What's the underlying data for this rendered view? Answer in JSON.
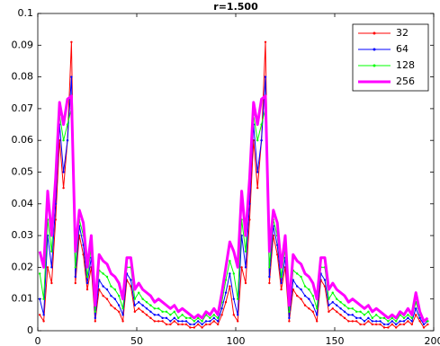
{
  "chart_data": {
    "type": "line",
    "title": "r=1.500",
    "x": [
      1,
      3,
      5,
      7,
      9,
      11,
      13,
      15,
      17,
      19,
      21,
      23,
      25,
      27,
      29,
      31,
      33,
      35,
      37,
      39,
      41,
      43,
      45,
      47,
      49,
      51,
      53,
      55,
      57,
      59,
      61,
      63,
      65,
      67,
      69,
      71,
      73,
      75,
      77,
      79,
      81,
      83,
      85,
      87,
      89,
      91,
      93,
      95,
      97,
      99,
      101,
      103,
      105,
      107,
      109,
      111,
      113,
      115,
      117,
      119,
      121,
      123,
      125,
      127,
      129,
      131,
      133,
      135,
      137,
      139,
      141,
      143,
      145,
      147,
      149,
      151,
      153,
      155,
      157,
      159,
      161,
      163,
      165,
      167,
      169,
      171,
      173,
      175,
      177,
      179,
      181,
      183,
      185,
      187,
      189,
      191,
      193,
      195,
      197
    ],
    "series": [
      {
        "name": "32",
        "color": "#ff0000",
        "width": 1,
        "values": [
          0.005,
          0.003,
          0.02,
          0.015,
          0.035,
          0.06,
          0.045,
          0.06,
          0.091,
          0.015,
          0.03,
          0.024,
          0.013,
          0.02,
          0.003,
          0.013,
          0.011,
          0.01,
          0.008,
          0.007,
          0.006,
          0.003,
          0.016,
          0.014,
          0.006,
          0.007,
          0.006,
          0.005,
          0.004,
          0.003,
          0.003,
          0.003,
          0.002,
          0.002,
          0.003,
          0.002,
          0.002,
          0.002,
          0.001,
          0.001,
          0.002,
          0.001,
          0.002,
          0.002,
          0.003,
          0.002,
          0.005,
          0.009,
          0.014,
          0.005,
          0.003,
          0.02,
          0.015,
          0.035,
          0.06,
          0.045,
          0.06,
          0.091,
          0.015,
          0.03,
          0.024,
          0.013,
          0.02,
          0.003,
          0.013,
          0.011,
          0.01,
          0.008,
          0.007,
          0.006,
          0.003,
          0.016,
          0.014,
          0.006,
          0.007,
          0.006,
          0.005,
          0.004,
          0.003,
          0.003,
          0.003,
          0.002,
          0.002,
          0.003,
          0.002,
          0.002,
          0.002,
          0.001,
          0.001,
          0.002,
          0.001,
          0.002,
          0.002,
          0.003,
          0.002,
          0.005,
          0.003,
          0.001,
          0.002
        ]
      },
      {
        "name": "64",
        "color": "#0000ff",
        "width": 1,
        "values": [
          0.01,
          0.005,
          0.03,
          0.02,
          0.04,
          0.065,
          0.05,
          0.06,
          0.08,
          0.017,
          0.033,
          0.027,
          0.015,
          0.023,
          0.004,
          0.016,
          0.014,
          0.013,
          0.011,
          0.01,
          0.008,
          0.005,
          0.018,
          0.016,
          0.008,
          0.009,
          0.008,
          0.007,
          0.006,
          0.005,
          0.005,
          0.004,
          0.004,
          0.003,
          0.004,
          0.003,
          0.003,
          0.003,
          0.002,
          0.002,
          0.003,
          0.002,
          0.003,
          0.003,
          0.004,
          0.003,
          0.007,
          0.012,
          0.018,
          0.01,
          0.005,
          0.03,
          0.02,
          0.04,
          0.065,
          0.05,
          0.06,
          0.08,
          0.017,
          0.033,
          0.027,
          0.015,
          0.023,
          0.004,
          0.016,
          0.014,
          0.013,
          0.011,
          0.01,
          0.008,
          0.005,
          0.018,
          0.016,
          0.008,
          0.009,
          0.008,
          0.007,
          0.006,
          0.005,
          0.005,
          0.004,
          0.004,
          0.003,
          0.004,
          0.003,
          0.003,
          0.003,
          0.002,
          0.002,
          0.003,
          0.002,
          0.003,
          0.003,
          0.004,
          0.003,
          0.007,
          0.004,
          0.002,
          0.003
        ]
      },
      {
        "name": "128",
        "color": "#00ff00",
        "width": 1,
        "values": [
          0.018,
          0.01,
          0.035,
          0.025,
          0.047,
          0.068,
          0.06,
          0.065,
          0.07,
          0.02,
          0.035,
          0.03,
          0.017,
          0.026,
          0.006,
          0.019,
          0.018,
          0.017,
          0.014,
          0.013,
          0.011,
          0.007,
          0.02,
          0.02,
          0.01,
          0.012,
          0.01,
          0.009,
          0.008,
          0.007,
          0.007,
          0.006,
          0.006,
          0.005,
          0.006,
          0.004,
          0.005,
          0.004,
          0.004,
          0.003,
          0.004,
          0.003,
          0.005,
          0.004,
          0.005,
          0.004,
          0.009,
          0.016,
          0.022,
          0.018,
          0.01,
          0.035,
          0.025,
          0.047,
          0.068,
          0.06,
          0.065,
          0.07,
          0.02,
          0.035,
          0.03,
          0.017,
          0.026,
          0.006,
          0.019,
          0.018,
          0.017,
          0.014,
          0.013,
          0.011,
          0.007,
          0.02,
          0.02,
          0.01,
          0.012,
          0.01,
          0.009,
          0.008,
          0.007,
          0.007,
          0.006,
          0.006,
          0.005,
          0.006,
          0.004,
          0.005,
          0.004,
          0.004,
          0.003,
          0.004,
          0.003,
          0.005,
          0.004,
          0.005,
          0.004,
          0.009,
          0.005,
          0.003,
          0.003
        ]
      },
      {
        "name": "256",
        "color": "#ff00ff",
        "width": 3,
        "values": [
          0.025,
          0.02,
          0.044,
          0.03,
          0.048,
          0.072,
          0.065,
          0.073,
          0.074,
          0.025,
          0.038,
          0.034,
          0.02,
          0.03,
          0.008,
          0.024,
          0.022,
          0.021,
          0.018,
          0.017,
          0.015,
          0.01,
          0.023,
          0.023,
          0.013,
          0.015,
          0.013,
          0.012,
          0.011,
          0.009,
          0.01,
          0.009,
          0.008,
          0.007,
          0.008,
          0.006,
          0.007,
          0.006,
          0.005,
          0.004,
          0.005,
          0.004,
          0.006,
          0.005,
          0.007,
          0.005,
          0.012,
          0.02,
          0.028,
          0.025,
          0.02,
          0.044,
          0.03,
          0.048,
          0.072,
          0.065,
          0.073,
          0.074,
          0.025,
          0.038,
          0.034,
          0.02,
          0.03,
          0.008,
          0.024,
          0.022,
          0.021,
          0.018,
          0.017,
          0.015,
          0.01,
          0.023,
          0.023,
          0.013,
          0.015,
          0.013,
          0.012,
          0.011,
          0.009,
          0.01,
          0.009,
          0.008,
          0.007,
          0.008,
          0.006,
          0.007,
          0.006,
          0.005,
          0.004,
          0.005,
          0.004,
          0.006,
          0.005,
          0.007,
          0.005,
          0.012,
          0.006,
          0.003,
          0.004
        ]
      }
    ],
    "xlim": [
      0,
      200
    ],
    "xticks": [
      0,
      50,
      100,
      150,
      200
    ],
    "ylim": [
      0,
      0.1
    ],
    "yticks": [
      0,
      0.01,
      0.02,
      0.03,
      0.04,
      0.05,
      0.06,
      0.07,
      0.08,
      0.09,
      0.1
    ],
    "grid": false,
    "legend": "top-right"
  }
}
